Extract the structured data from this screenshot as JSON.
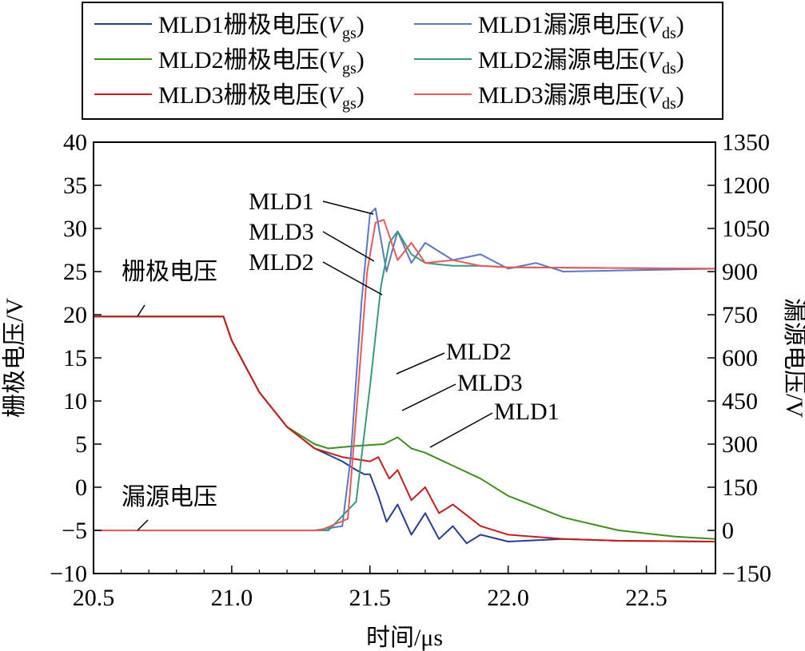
{
  "chart_data": {
    "type": "line",
    "title": "",
    "xlabel": "时间/μs",
    "ylabel_left": "栅极电压/V",
    "ylabel_right": "漏源电压/V",
    "xlim": [
      20.5,
      22.75
    ],
    "ylim_left": [
      -10,
      40
    ],
    "ylim_right": [
      -150,
      1350
    ],
    "x_ticks": [
      20.5,
      21.0,
      21.5,
      22.0,
      22.5
    ],
    "x_tick_labels": [
      "20.5",
      "21.0",
      "21.5",
      "22.0",
      "22.5"
    ],
    "y_left_ticks": [
      -10,
      -5,
      0,
      5,
      10,
      15,
      20,
      25,
      30,
      35,
      40
    ],
    "y_left_tick_labels": [
      "−10",
      "−5",
      "0",
      "5",
      "10",
      "15",
      "20",
      "25",
      "30",
      "35",
      "40"
    ],
    "y_right_ticks": [
      -150,
      0,
      150,
      300,
      450,
      600,
      750,
      900,
      1050,
      1200,
      1350
    ],
    "y_right_tick_labels": [
      "−150",
      "0",
      "150",
      "300",
      "450",
      "600",
      "750",
      "900",
      "1050",
      "1200",
      "1350"
    ],
    "legend_position": "top",
    "series": [
      {
        "name": "MLD1栅极电压",
        "sym": "V",
        "sub": "gs",
        "color": "#2a3d96",
        "axis": "left",
        "x": [
          20.5,
          20.97,
          21.0,
          21.1,
          21.2,
          21.3,
          21.4,
          21.45,
          21.48,
          21.5,
          21.53,
          21.56,
          21.6,
          21.65,
          21.7,
          21.75,
          21.8,
          21.85,
          21.9,
          22.0,
          22.2,
          22.4,
          22.75
        ],
        "y": [
          19.8,
          19.8,
          17.0,
          11.0,
          7.0,
          4.5,
          3.0,
          2.0,
          1.5,
          1.5,
          -1.0,
          -4.0,
          -2.0,
          -5.5,
          -3.0,
          -6.0,
          -4.5,
          -6.5,
          -5.5,
          -6.3,
          -6.0,
          -6.2,
          -6.3
        ]
      },
      {
        "name": "MLD2栅极电压",
        "sym": "V",
        "sub": "gs",
        "color": "#3f8f1f",
        "axis": "left",
        "x": [
          20.5,
          20.97,
          21.0,
          21.1,
          21.2,
          21.3,
          21.35,
          21.45,
          21.55,
          21.6,
          21.65,
          21.7,
          21.8,
          21.9,
          22.0,
          22.2,
          22.4,
          22.6,
          22.75
        ],
        "y": [
          19.8,
          19.8,
          17.0,
          11.0,
          7.0,
          5.0,
          4.5,
          4.8,
          5.0,
          5.8,
          4.5,
          4.0,
          2.5,
          1.0,
          -1.0,
          -3.5,
          -5.0,
          -5.7,
          -6.0
        ]
      },
      {
        "name": "MLD3栅极电压",
        "sym": "V",
        "sub": "gs",
        "color": "#c41e1e",
        "axis": "left",
        "x": [
          20.5,
          20.97,
          21.0,
          21.1,
          21.2,
          21.3,
          21.4,
          21.5,
          21.53,
          21.57,
          21.6,
          21.65,
          21.7,
          21.75,
          21.8,
          21.9,
          22.0,
          22.2,
          22.4,
          22.75
        ],
        "y": [
          19.8,
          19.8,
          17.0,
          11.0,
          7.0,
          4.5,
          3.5,
          3.0,
          3.5,
          1.0,
          2.0,
          -1.5,
          0.0,
          -3.0,
          -2.0,
          -4.5,
          -5.5,
          -6.0,
          -6.2,
          -6.3
        ]
      },
      {
        "name": "MLD1漏源电压",
        "sym": "V",
        "sub": "ds",
        "color": "#5a78c4",
        "axis": "right",
        "x": [
          20.5,
          21.3,
          21.4,
          21.43,
          21.47,
          21.5,
          21.52,
          21.56,
          21.6,
          21.65,
          21.7,
          21.8,
          21.9,
          22.0,
          22.1,
          22.2,
          22.75
        ],
        "y": [
          0,
          0,
          15,
          250,
          800,
          1100,
          1120,
          900,
          1040,
          930,
          1000,
          940,
          960,
          910,
          930,
          900,
          910
        ]
      },
      {
        "name": "MLD2漏源电压",
        "sym": "V",
        "sub": "ds",
        "color": "#3a9a78",
        "axis": "right",
        "x": [
          20.5,
          21.35,
          21.45,
          21.5,
          21.54,
          21.57,
          21.6,
          21.65,
          21.7,
          21.8,
          21.9,
          22.0,
          22.75
        ],
        "y": [
          0,
          0,
          100,
          500,
          850,
          1000,
          1040,
          960,
          930,
          920,
          920,
          915,
          910
        ]
      },
      {
        "name": "MLD3漏源电压",
        "sym": "V",
        "sub": "ds",
        "color": "#e85a5a",
        "axis": "right",
        "x": [
          20.5,
          21.32,
          21.42,
          21.45,
          21.49,
          21.52,
          21.55,
          21.6,
          21.65,
          21.7,
          21.8,
          21.9,
          22.0,
          22.75
        ],
        "y": [
          0,
          0,
          40,
          400,
          900,
          1070,
          1080,
          940,
          1000,
          930,
          940,
          920,
          915,
          910
        ]
      }
    ],
    "annotations": [
      {
        "text": "MLD1",
        "target_series": "MLD1漏源电压"
      },
      {
        "text": "MLD3",
        "target_series": "MLD3漏源电压"
      },
      {
        "text": "MLD2",
        "target_series": "MLD2漏源电压"
      },
      {
        "text": "栅极电压",
        "target_series": "栅极电压"
      },
      {
        "text": "漏源电压",
        "target_series": "漏源电压"
      },
      {
        "text": "MLD2",
        "target_series": "MLD2栅极电压"
      },
      {
        "text": "MLD3",
        "target_series": "MLD3栅极电压"
      },
      {
        "text": "MLD1",
        "target_series": "MLD1栅极电压"
      }
    ]
  }
}
